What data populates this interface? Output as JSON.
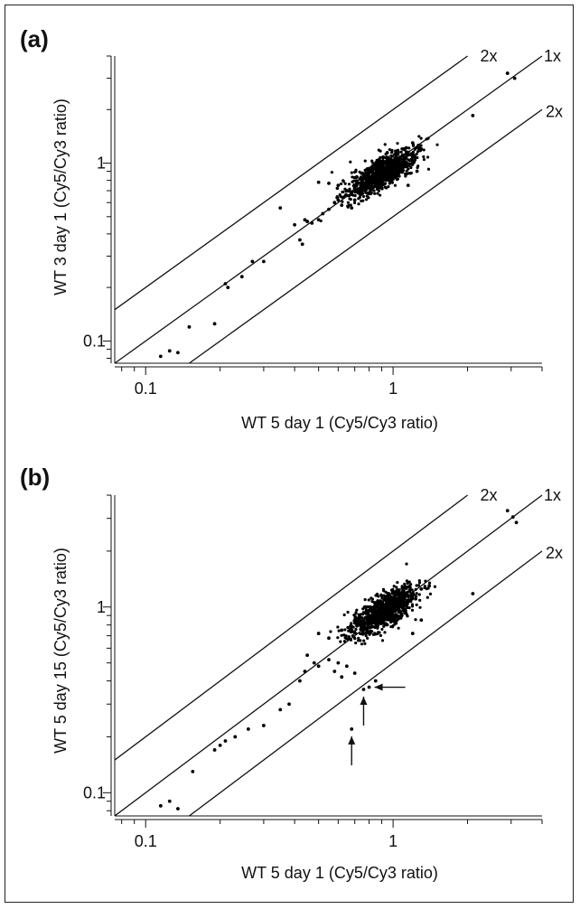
{
  "chart_data": [
    {
      "type": "scatter",
      "panel_label": "(a)",
      "xlabel": "WT 5 day 1 (Cy5/Cy3 ratio)",
      "ylabel": "WT 3 day 1 (Cy5/Cy3 ratio)",
      "xscale": "log",
      "yscale": "log",
      "xlim": [
        0.075,
        4.0
      ],
      "ylim": [
        0.075,
        4.0
      ],
      "x_ticks": [
        {
          "value": 0.1,
          "label": "0.1"
        },
        {
          "value": 1,
          "label": "1"
        }
      ],
      "y_ticks": [
        {
          "value": 0.1,
          "label": "0.1"
        },
        {
          "value": 1,
          "label": "1"
        }
      ],
      "reference_lines": [
        {
          "label": "2x",
          "factor": 2
        },
        {
          "label": "1x",
          "factor": 1
        },
        {
          "label": "2x",
          "factor": 0.5
        }
      ],
      "cluster": {
        "center_x": 0.9,
        "center_y": 0.88,
        "description": "dense cloud near 1"
      },
      "points": [
        [
          0.115,
          0.082
        ],
        [
          0.125,
          0.088
        ],
        [
          0.135,
          0.086
        ],
        [
          0.15,
          0.12
        ],
        [
          0.19,
          0.125
        ],
        [
          0.21,
          0.21
        ],
        [
          0.215,
          0.2
        ],
        [
          0.245,
          0.23
        ],
        [
          0.27,
          0.28
        ],
        [
          0.3,
          0.28
        ],
        [
          0.35,
          0.56
        ],
        [
          0.4,
          0.45
        ],
        [
          0.42,
          0.37
        ],
        [
          0.43,
          0.35
        ],
        [
          0.44,
          0.48
        ],
        [
          0.45,
          0.47
        ],
        [
          0.47,
          0.46
        ],
        [
          0.5,
          0.48
        ],
        [
          0.52,
          0.52
        ],
        [
          0.55,
          0.55
        ],
        [
          0.58,
          0.6
        ],
        [
          0.6,
          0.62
        ],
        [
          0.62,
          0.58
        ],
        [
          0.5,
          0.78
        ],
        [
          0.55,
          0.77
        ],
        [
          0.6,
          0.75
        ],
        [
          0.65,
          0.7
        ],
        [
          0.68,
          0.56
        ],
        [
          0.7,
          0.62
        ],
        [
          0.75,
          0.8
        ],
        [
          0.82,
          0.9
        ],
        [
          0.9,
          0.95
        ],
        [
          0.95,
          1.02
        ],
        [
          1.05,
          1.05
        ],
        [
          1.1,
          1.2
        ],
        [
          1.2,
          1.3
        ],
        [
          1.3,
          1.2
        ],
        [
          1.15,
          0.75
        ],
        [
          1.25,
          0.9
        ],
        [
          2.1,
          1.85
        ],
        [
          2.9,
          3.2
        ],
        [
          3.1,
          3.0
        ]
      ]
    },
    {
      "type": "scatter",
      "panel_label": "(b)",
      "xlabel": "WT 5 day 1 (Cy5/Cy3 ratio)",
      "ylabel": "WT 5 day 15 (Cy5/Cy3 ratio)",
      "xscale": "log",
      "yscale": "log",
      "xlim": [
        0.075,
        4.0
      ],
      "ylim": [
        0.075,
        4.0
      ],
      "x_ticks": [
        {
          "value": 0.1,
          "label": "0.1"
        },
        {
          "value": 1,
          "label": "1"
        }
      ],
      "y_ticks": [
        {
          "value": 0.1,
          "label": "0.1"
        },
        {
          "value": 1,
          "label": "1"
        }
      ],
      "reference_lines": [
        {
          "label": "2x",
          "factor": 2
        },
        {
          "label": "1x",
          "factor": 1
        },
        {
          "label": "2x",
          "factor": 0.5
        }
      ],
      "cluster": {
        "center_x": 0.92,
        "center_y": 0.95,
        "description": "dense cloud near 1"
      },
      "arrows": [
        {
          "target_x": 0.8,
          "target_y": 0.37,
          "direction": "left"
        },
        {
          "target_x": 0.76,
          "target_y": 0.36,
          "direction": "up"
        },
        {
          "target_x": 0.68,
          "target_y": 0.22,
          "direction": "up"
        }
      ],
      "points": [
        [
          0.115,
          0.085
        ],
        [
          0.125,
          0.09
        ],
        [
          0.135,
          0.082
        ],
        [
          0.155,
          0.13
        ],
        [
          0.19,
          0.17
        ],
        [
          0.2,
          0.18
        ],
        [
          0.21,
          0.19
        ],
        [
          0.23,
          0.2
        ],
        [
          0.26,
          0.22
        ],
        [
          0.3,
          0.23
        ],
        [
          0.35,
          0.28
        ],
        [
          0.38,
          0.3
        ],
        [
          0.42,
          0.4
        ],
        [
          0.44,
          0.45
        ],
        [
          0.45,
          0.55
        ],
        [
          0.48,
          0.5
        ],
        [
          0.5,
          0.48
        ],
        [
          0.55,
          0.52
        ],
        [
          0.58,
          0.45
        ],
        [
          0.6,
          0.5
        ],
        [
          0.62,
          0.42
        ],
        [
          0.65,
          0.48
        ],
        [
          0.7,
          0.44
        ],
        [
          0.68,
          0.22
        ],
        [
          0.76,
          0.36
        ],
        [
          0.8,
          0.37
        ],
        [
          0.85,
          0.4
        ],
        [
          0.5,
          0.72
        ],
        [
          0.55,
          0.68
        ],
        [
          0.62,
          0.75
        ],
        [
          0.72,
          0.85
        ],
        [
          0.82,
          0.95
        ],
        [
          0.95,
          1.05
        ],
        [
          1.05,
          1.0
        ],
        [
          1.15,
          1.15
        ],
        [
          1.3,
          1.25
        ],
        [
          1.4,
          1.3
        ],
        [
          1.2,
          0.72
        ],
        [
          1.3,
          0.85
        ],
        [
          2.1,
          1.18
        ],
        [
          2.9,
          3.3
        ],
        [
          3.05,
          3.05
        ],
        [
          3.15,
          2.85
        ]
      ]
    }
  ]
}
